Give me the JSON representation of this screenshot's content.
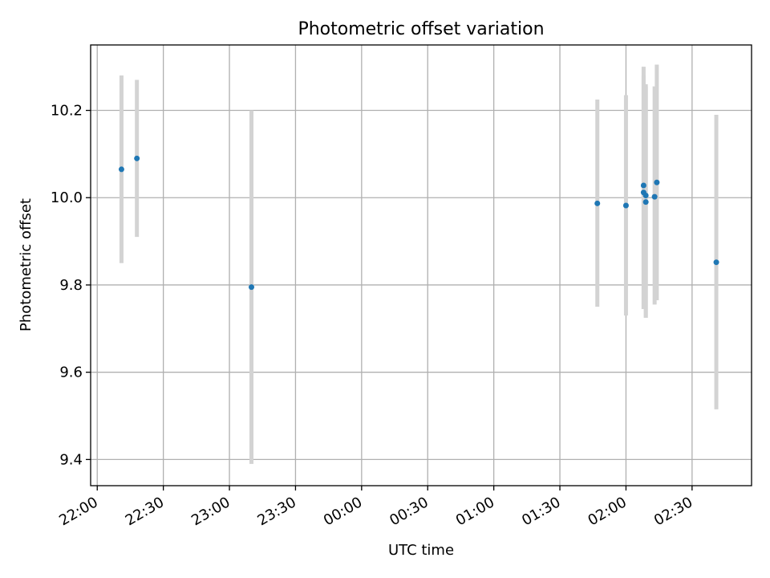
{
  "chart_data": {
    "type": "scatter",
    "title": "Photometric offset variation",
    "xlabel": "UTC time",
    "ylabel": "Photometric offset",
    "x_ticks": [
      "22:00",
      "22:30",
      "23:00",
      "23:30",
      "00:00",
      "00:30",
      "01:00",
      "01:30",
      "02:00",
      "02:30"
    ],
    "y_ticks": [
      "9.4",
      "9.6",
      "9.8",
      "10.0",
      "10.2"
    ],
    "xlim": [
      "21:57",
      "02:57"
    ],
    "ylim": [
      9.34,
      10.35
    ],
    "grid": true,
    "colors": {
      "point": "#1f77b4",
      "errorbar": "#d3d3d3",
      "grid": "#b0b0b0"
    },
    "points": [
      {
        "x": "22:11",
        "y": 10.065,
        "yerr_low": 9.85,
        "yerr_high": 10.28
      },
      {
        "x": "22:18",
        "y": 10.09,
        "yerr_low": 9.91,
        "yerr_high": 10.27
      },
      {
        "x": "23:10",
        "y": 9.795,
        "yerr_low": 9.39,
        "yerr_high": 10.2
      },
      {
        "x": "01:47",
        "y": 9.987,
        "yerr_low": 9.75,
        "yerr_high": 10.225
      },
      {
        "x": "02:00",
        "y": 9.982,
        "yerr_low": 9.73,
        "yerr_high": 10.235
      },
      {
        "x": "02:08",
        "y": 10.012,
        "yerr_low": 9.745,
        "yerr_high": 10.28
      },
      {
        "x": "02:08",
        "y": 10.028,
        "yerr_low": 9.745,
        "yerr_high": 10.3
      },
      {
        "x": "02:09",
        "y": 10.005,
        "yerr_low": 9.725,
        "yerr_high": 10.26
      },
      {
        "x": "02:09",
        "y": 9.99,
        "yerr_low": 9.725,
        "yerr_high": 10.255
      },
      {
        "x": "02:13",
        "y": 10.002,
        "yerr_low": 9.755,
        "yerr_high": 10.255
      },
      {
        "x": "02:14",
        "y": 10.035,
        "yerr_low": 9.765,
        "yerr_high": 10.305
      },
      {
        "x": "02:41",
        "y": 9.852,
        "yerr_low": 9.515,
        "yerr_high": 10.19
      }
    ]
  }
}
